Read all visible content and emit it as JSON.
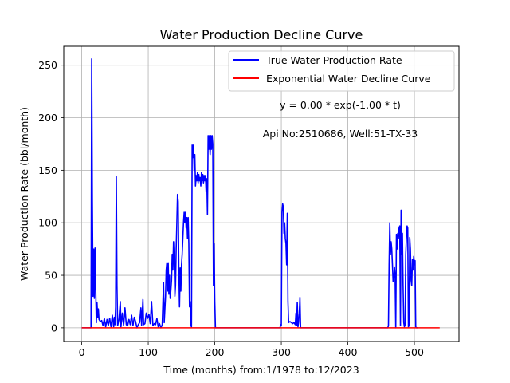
{
  "chart_data": {
    "type": "line",
    "title": "Water Production Decline Curve",
    "xlabel": "Time (months) from:1/1978 to:12/2023",
    "ylabel": "Water Production Rate (bbl/month)",
    "xlim": [
      -27,
      567
    ],
    "ylim": [
      -13,
      268
    ],
    "xticks": [
      0,
      100,
      200,
      300,
      400,
      500
    ],
    "yticks": [
      0,
      50,
      100,
      150,
      200,
      250
    ],
    "grid": true,
    "legend_position": "top-right",
    "annotations": [
      {
        "text": "y = 0.00 * exp(-1.00 * t)"
      },
      {
        "text": "Api No:2510686, Well:51-TX-33"
      }
    ],
    "series": [
      {
        "name": "True Water Production Rate",
        "color": "#0000ff",
        "points": [
          [
            0,
            0
          ],
          [
            10,
            0
          ],
          [
            14,
            0
          ],
          [
            15,
            256
          ],
          [
            16,
            120
          ],
          [
            17,
            30
          ],
          [
            18,
            75
          ],
          [
            19,
            28
          ],
          [
            20,
            76
          ],
          [
            21,
            40
          ],
          [
            22,
            5
          ],
          [
            23,
            24
          ],
          [
            24,
            10
          ],
          [
            25,
            18
          ],
          [
            26,
            8
          ],
          [
            28,
            6
          ],
          [
            30,
            7
          ],
          [
            32,
            2
          ],
          [
            34,
            9
          ],
          [
            36,
            1
          ],
          [
            38,
            8
          ],
          [
            40,
            2
          ],
          [
            42,
            9
          ],
          [
            44,
            1
          ],
          [
            46,
            12
          ],
          [
            48,
            1
          ],
          [
            49,
            10
          ],
          [
            50,
            3
          ],
          [
            51,
            20
          ],
          [
            52,
            144
          ],
          [
            53,
            40
          ],
          [
            54,
            2
          ],
          [
            56,
            8
          ],
          [
            58,
            25
          ],
          [
            59,
            1
          ],
          [
            61,
            14
          ],
          [
            63,
            2
          ],
          [
            65,
            19
          ],
          [
            67,
            3
          ],
          [
            69,
            2
          ],
          [
            71,
            8
          ],
          [
            73,
            3
          ],
          [
            75,
            12
          ],
          [
            77,
            2
          ],
          [
            79,
            10
          ],
          [
            81,
            6
          ],
          [
            83,
            0
          ],
          [
            85,
            3
          ],
          [
            87,
            5
          ],
          [
            89,
            19
          ],
          [
            90,
            2
          ],
          [
            92,
            27
          ],
          [
            93,
            3
          ],
          [
            95,
            4
          ],
          [
            97,
            14
          ],
          [
            99,
            9
          ],
          [
            101,
            13
          ],
          [
            103,
            4
          ],
          [
            105,
            25
          ],
          [
            107,
            2
          ],
          [
            109,
            4
          ],
          [
            111,
            3
          ],
          [
            113,
            9
          ],
          [
            115,
            1
          ],
          [
            117,
            4
          ],
          [
            119,
            0
          ],
          [
            121,
            3
          ],
          [
            123,
            43
          ],
          [
            124,
            5
          ],
          [
            126,
            30
          ],
          [
            127,
            55
          ],
          [
            128,
            62
          ],
          [
            129,
            35
          ],
          [
            130,
            62
          ],
          [
            131,
            32
          ],
          [
            132,
            50
          ],
          [
            133,
            28
          ],
          [
            134,
            36
          ],
          [
            135,
            45
          ],
          [
            136,
            70
          ],
          [
            137,
            55
          ],
          [
            138,
            82
          ],
          [
            139,
            65
          ],
          [
            140,
            30
          ],
          [
            141,
            40
          ],
          [
            142,
            75
          ],
          [
            143,
            100
          ],
          [
            144,
            127
          ],
          [
            145,
            120
          ],
          [
            146,
            57
          ],
          [
            147,
            20
          ],
          [
            148,
            57
          ],
          [
            149,
            35
          ],
          [
            150,
            60
          ],
          [
            151,
            70
          ],
          [
            152,
            85
          ],
          [
            153,
            100
          ],
          [
            154,
            110
          ],
          [
            155,
            100
          ],
          [
            156,
            110
          ],
          [
            157,
            95
          ],
          [
            158,
            105
          ],
          [
            159,
            85
          ],
          [
            160,
            105
          ],
          [
            161,
            80
          ],
          [
            162,
            20
          ],
          [
            163,
            25
          ],
          [
            164,
            2
          ],
          [
            165,
            1
          ],
          [
            166,
            174
          ],
          [
            167,
            162
          ],
          [
            168,
            174
          ],
          [
            169,
            150
          ],
          [
            170,
            165
          ],
          [
            171,
            135
          ],
          [
            172,
            145
          ],
          [
            173,
            140
          ],
          [
            174,
            148
          ],
          [
            175,
            138
          ],
          [
            176,
            146
          ],
          [
            177,
            140
          ],
          [
            178,
            143
          ],
          [
            179,
            135
          ],
          [
            180,
            148
          ],
          [
            181,
            140
          ],
          [
            182,
            146
          ],
          [
            183,
            138
          ],
          [
            184,
            145
          ],
          [
            185,
            140
          ],
          [
            186,
            145
          ],
          [
            187,
            130
          ],
          [
            188,
            142
          ],
          [
            189,
            108
          ],
          [
            190,
            183
          ],
          [
            191,
            170
          ],
          [
            192,
            183
          ],
          [
            193,
            165
          ],
          [
            194,
            183
          ],
          [
            195,
            170
          ],
          [
            196,
            183
          ],
          [
            197,
            175
          ],
          [
            198,
            40
          ],
          [
            199,
            80
          ],
          [
            200,
            25
          ],
          [
            201,
            0
          ],
          [
            230,
            0
          ],
          [
            298,
            0
          ],
          [
            299,
            3
          ],
          [
            300,
            2
          ],
          [
            301,
            110
          ],
          [
            302,
            118
          ],
          [
            303,
            115
          ],
          [
            304,
            90
          ],
          [
            305,
            100
          ],
          [
            306,
            85
          ],
          [
            307,
            80
          ],
          [
            308,
            60
          ],
          [
            309,
            109
          ],
          [
            310,
            25
          ],
          [
            311,
            5
          ],
          [
            313,
            6
          ],
          [
            315,
            5
          ],
          [
            317,
            4
          ],
          [
            319,
            5
          ],
          [
            321,
            3
          ],
          [
            322,
            14
          ],
          [
            323,
            2
          ],
          [
            324,
            24
          ],
          [
            325,
            1
          ],
          [
            326,
            5
          ],
          [
            327,
            14
          ],
          [
            328,
            29
          ],
          [
            329,
            0
          ],
          [
            340,
            0
          ],
          [
            460,
            0
          ],
          [
            461,
            2
          ],
          [
            462,
            60
          ],
          [
            463,
            100
          ],
          [
            464,
            70
          ],
          [
            465,
            82
          ],
          [
            466,
            75
          ],
          [
            467,
            60
          ],
          [
            468,
            44
          ],
          [
            469,
            46
          ],
          [
            470,
            58
          ],
          [
            471,
            50
          ],
          [
            472,
            0
          ],
          [
            473,
            89
          ],
          [
            474,
            75
          ],
          [
            475,
            90
          ],
          [
            476,
            85
          ],
          [
            477,
            95
          ],
          [
            478,
            97
          ],
          [
            479,
            2
          ],
          [
            480,
            112
          ],
          [
            481,
            70
          ],
          [
            482,
            90
          ],
          [
            483,
            40
          ],
          [
            484,
            5
          ],
          [
            485,
            1
          ],
          [
            486,
            3
          ],
          [
            487,
            70
          ],
          [
            488,
            85
          ],
          [
            489,
            97
          ],
          [
            490,
            95
          ],
          [
            491,
            1
          ],
          [
            492,
            2
          ],
          [
            493,
            86
          ],
          [
            494,
            75
          ],
          [
            495,
            45
          ],
          [
            496,
            40
          ],
          [
            497,
            65
          ],
          [
            498,
            55
          ],
          [
            499,
            68
          ],
          [
            500,
            60
          ],
          [
            501,
            64
          ],
          [
            502,
            1
          ],
          [
            503,
            0
          ],
          [
            505,
            0
          ]
        ]
      },
      {
        "name": "Exponential Water Decline Curve",
        "color": "#ff0000",
        "points": [
          [
            0,
            0
          ],
          [
            538,
            0
          ]
        ]
      }
    ]
  }
}
